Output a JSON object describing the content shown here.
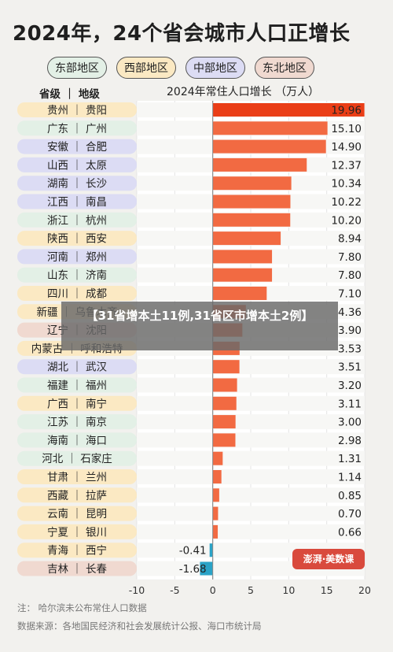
{
  "title": "2024年，24个省会城市人口正增长",
  "legend": [
    {
      "label": "东部地区",
      "color": "#e3f0e6"
    },
    {
      "label": "西部地区",
      "color": "#fbe9c3"
    },
    {
      "label": "中部地区",
      "color": "#dcdcf4"
    },
    {
      "label": "东北地区",
      "color": "#f0d9d0"
    }
  ],
  "header_left": "省级 ｜ 地级",
  "header_right": "2024年常住人口增长 （万人）",
  "overlay_text": "【31省增本土11例,31省区市增本土2例】",
  "watermark_text": "澎湃·美数课",
  "footnote_1": "注：  哈尔滨未公布常住人口数据",
  "footnote_2": "数据来源：各地国民经济和社会发展统计公报、海口市统计局",
  "chart_data": {
    "type": "bar",
    "orientation": "horizontal",
    "ylabel": "2024年常住人口增长 （万人）",
    "xlim": [
      -10,
      20
    ],
    "xticks": [
      -10,
      -5,
      0,
      5,
      10,
      15,
      20
    ],
    "grid": true,
    "region_colors": {
      "东部": "#e3f0e6",
      "西部": "#fbe9c3",
      "中部": "#dcdcf4",
      "东北": "#f0d9d0"
    },
    "bar_color_positive": "#f26a42",
    "bar_color_negative": "#2aa3c7",
    "highlight_color": "#ea3e17",
    "categories": [
      "贵州 ｜ 贵阳",
      "广东 ｜ 广州",
      "安徽 ｜ 合肥",
      "山西 ｜ 太原",
      "湖南 ｜ 长沙",
      "江西 ｜ 南昌",
      "浙江 ｜ 杭州",
      "陕西 ｜ 西安",
      "河南 ｜ 郑州",
      "山东 ｜ 济南",
      "四川 ｜ 成都",
      "新疆 ｜ 乌鲁木齐",
      "辽宁 ｜ 沈阳",
      "内蒙古 ｜ 呼和浩特",
      "湖北 ｜ 武汉",
      "福建 ｜ 福州",
      "广西 ｜ 南宁",
      "江苏 ｜ 南京",
      "海南 ｜ 海口",
      "河北 ｜ 石家庄",
      "甘肃 ｜ 兰州",
      "西藏 ｜ 拉萨",
      "云南 ｜ 昆明",
      "宁夏 ｜ 银川",
      "青海 ｜ 西宁",
      "吉林 ｜ 长春"
    ],
    "value_labels": [
      "19.96",
      "15.10",
      "14.90",
      "12.37",
      "10.34",
      "10.22",
      "10.20",
      "8.94",
      "7.80",
      "7.80",
      "7.10",
      "4.36",
      "3.90",
      "3.53",
      "3.51",
      "3.20",
      "3.11",
      "3.00",
      "2.98",
      "1.31",
      "1.14",
      "0.85",
      "0.70",
      "0.66",
      "-0.41",
      "-1.68"
    ],
    "values": [
      19.96,
      15.1,
      14.9,
      12.37,
      10.34,
      10.22,
      10.2,
      8.94,
      7.8,
      7.8,
      7.1,
      4.36,
      3.9,
      3.53,
      3.51,
      3.2,
      3.11,
      3.0,
      2.98,
      1.31,
      1.14,
      0.85,
      0.7,
      0.66,
      -0.41,
      -1.68
    ],
    "regions": [
      "西部",
      "东部",
      "中部",
      "中部",
      "中部",
      "中部",
      "东部",
      "西部",
      "中部",
      "东部",
      "西部",
      "西部",
      "东北",
      "西部",
      "中部",
      "东部",
      "西部",
      "东部",
      "东部",
      "东部",
      "西部",
      "西部",
      "西部",
      "西部",
      "西部",
      "东北"
    ]
  }
}
